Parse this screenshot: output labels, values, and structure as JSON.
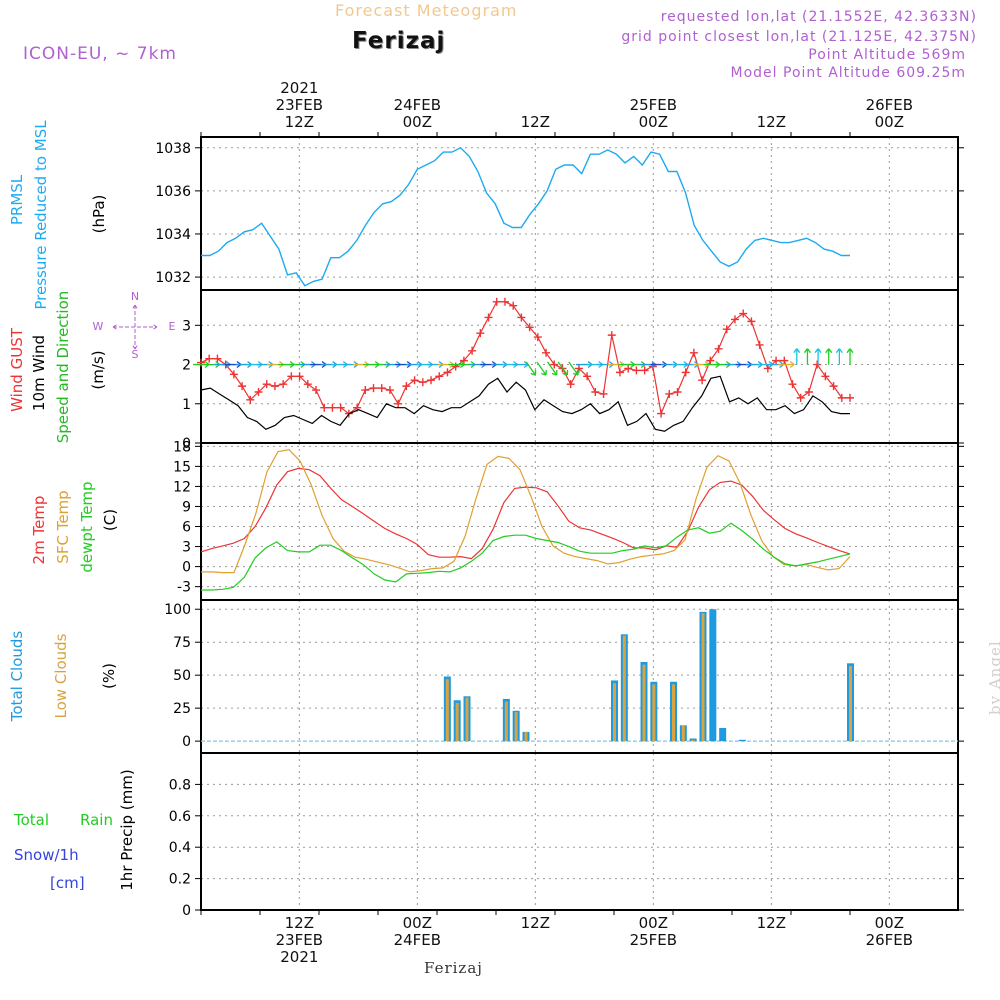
{
  "header": {
    "model": "ICON-EU, ~ 7km",
    "title": "Forecast Meteogram",
    "station": "Ferizaj",
    "requested": "requested lon,lat (21.1552E, 42.3633N)",
    "grid_point": "grid point closest lon,lat (21.125E, 42.375N)",
    "point_altitude": "Point Altitude 569m",
    "model_altitude": "Model Point Altitude 609.25m",
    "footer_station": "Ferizaj",
    "watermark": "by Angel"
  },
  "colors": {
    "pressure": "#1eaaf0",
    "gust": "#ee3333",
    "wind": "#000000",
    "direction": "#22bb22",
    "temp2m": "#ee3333",
    "sfc": "#e0a030",
    "dewpt": "#22cc22",
    "total_clouds": "#1e9be0",
    "low_clouds": "#d9a440",
    "rain": "#22cc22",
    "snow": "#3344dd",
    "header_purple": "#b060d0",
    "title_orange": "#f0c890"
  },
  "time_axis": {
    "start_hour": 0,
    "end_hour": 66,
    "top_labels": [
      {
        "hour": 10,
        "lines": [
          "2021",
          "23FEB",
          "12Z"
        ]
      },
      {
        "hour": 22,
        "lines": [
          "24FEB",
          "00Z"
        ]
      },
      {
        "hour": 34,
        "lines": [
          "12Z"
        ]
      },
      {
        "hour": 46,
        "lines": [
          "25FEB",
          "00Z"
        ]
      },
      {
        "hour": 58,
        "lines": [
          "12Z"
        ]
      },
      {
        "hour": 70,
        "lines": [
          "26FEB",
          "00Z"
        ]
      }
    ],
    "bottom_labels": [
      {
        "hour": 10,
        "lines": [
          "12Z",
          "23FEB",
          "2021"
        ]
      },
      {
        "hour": 22,
        "lines": [
          "00Z",
          "24FEB"
        ]
      },
      {
        "hour": 34,
        "lines": [
          "12Z"
        ]
      },
      {
        "hour": 46,
        "lines": [
          "00Z",
          "25FEB"
        ]
      },
      {
        "hour": 58,
        "lines": [
          "12Z"
        ]
      },
      {
        "hour": 70,
        "lines": [
          "00Z",
          "26FEB"
        ]
      }
    ]
  },
  "chart_data": [
    {
      "type": "line",
      "panel": "pressure",
      "ylabels": [
        "PRMSL",
        "Pressure Reduced to MSL",
        "(hPa)"
      ],
      "ylim": [
        1031.4,
        1038.5
      ],
      "yticks": [
        1032,
        1034,
        1036,
        1038
      ],
      "grid": true,
      "series": [
        {
          "name": "PRMSL",
          "values": [
            1033.0,
            1033.0,
            1033.2,
            1033.6,
            1033.8,
            1034.1,
            1034.2,
            1034.5,
            1033.9,
            1033.3,
            1032.1,
            1032.2,
            1031.6,
            1031.8,
            1031.9,
            1032.9,
            1032.9,
            1033.2,
            1033.7,
            1034.4,
            1035.0,
            1035.4,
            1035.5,
            1035.8,
            1036.3,
            1037.0,
            1037.2,
            1037.4,
            1037.8,
            1037.8,
            1038.0,
            1037.6,
            1036.9,
            1035.9,
            1035.4,
            1034.5,
            1034.3,
            1034.3,
            1034.9,
            1035.4,
            1036.0,
            1037.0,
            1037.2,
            1037.2,
            1036.8,
            1037.7,
            1037.7,
            1037.9,
            1037.7,
            1037.3,
            1037.6,
            1037.2,
            1037.8,
            1037.7,
            1036.9,
            1036.9,
            1035.9,
            1034.4,
            1033.7,
            1033.2,
            1032.7,
            1032.5,
            1032.7,
            1033.3,
            1033.7,
            1033.8,
            1033.7,
            1033.6,
            1033.6,
            1033.7,
            1033.8,
            1033.6,
            1033.3,
            1033.2,
            1033.0,
            1033.0
          ]
        }
      ]
    },
    {
      "type": "line",
      "panel": "wind",
      "ylabels": [
        "Wind GUST",
        "10m Wind",
        "Speed and Direction",
        "(m/s)"
      ],
      "compass": {
        "n": "N",
        "s": "S",
        "w": "W",
        "e": "E"
      },
      "ylim": [
        0,
        3.9
      ],
      "yticks": [
        0,
        1,
        2,
        3
      ],
      "grid": true,
      "series": [
        {
          "name": "Wind GUST",
          "values": [
            2.05,
            2.15,
            2.15,
            2.0,
            1.75,
            1.45,
            1.1,
            1.3,
            1.5,
            1.45,
            1.5,
            1.7,
            1.7,
            1.5,
            1.35,
            0.9,
            0.9,
            0.9,
            0.75,
            0.9,
            1.35,
            1.4,
            1.4,
            1.35,
            1.0,
            1.45,
            1.6,
            1.55,
            1.6,
            1.7,
            1.8,
            1.95,
            2.1,
            2.35,
            2.8,
            3.2,
            3.6,
            3.6,
            3.5,
            3.2,
            2.95,
            2.7,
            2.3,
            2.0,
            1.9,
            1.5,
            1.9,
            1.7,
            1.3,
            1.25,
            2.75,
            1.8,
            1.9,
            1.85,
            1.85,
            1.95,
            0.75,
            1.25,
            1.3,
            1.8,
            2.3,
            1.6,
            2.1,
            2.4,
            2.9,
            3.15,
            3.3,
            3.1,
            2.5,
            1.9,
            2.1,
            2.1,
            1.5,
            1.15,
            1.3,
            2.0,
            1.7,
            1.45,
            1.15,
            1.15
          ]
        },
        {
          "name": "10m Wind",
          "values": [
            1.35,
            1.4,
            1.25,
            1.1,
            0.95,
            0.65,
            0.55,
            0.35,
            0.45,
            0.65,
            0.7,
            0.6,
            0.5,
            0.7,
            0.55,
            0.45,
            0.75,
            0.85,
            0.75,
            0.65,
            1.0,
            0.9,
            0.9,
            0.75,
            0.95,
            0.85,
            0.8,
            0.9,
            0.9,
            1.05,
            1.2,
            1.5,
            1.65,
            1.3,
            1.55,
            1.35,
            0.85,
            1.1,
            0.95,
            0.8,
            0.75,
            0.85,
            1.0,
            0.75,
            0.85,
            1.05,
            0.45,
            0.55,
            0.75,
            0.35,
            0.3,
            0.45,
            0.55,
            0.9,
            1.2,
            1.65,
            1.7,
            1.05,
            1.15,
            1.0,
            1.15,
            0.85,
            0.85,
            0.95,
            0.75,
            0.85,
            1.2,
            1.05,
            0.8,
            0.75,
            0.75
          ]
        }
      ]
    },
    {
      "type": "line",
      "panel": "temperature",
      "ylabels": [
        "2m Temp",
        "SFC Temp",
        "dewpt Temp",
        "(C)"
      ],
      "ylim": [
        -5,
        18.5
      ],
      "yticks": [
        -3,
        0,
        3,
        6,
        9,
        12,
        15,
        18
      ],
      "grid": true,
      "series": [
        {
          "name": "2m Temp",
          "values": [
            2.2,
            2.7,
            3.1,
            3.5,
            4.2,
            6.0,
            8.8,
            12.2,
            14.2,
            14.7,
            14.5,
            13.6,
            11.7,
            10.0,
            9.0,
            7.9,
            6.8,
            5.7,
            4.9,
            4.2,
            3.3,
            1.8,
            1.4,
            1.4,
            1.5,
            1.2,
            2.7,
            5.6,
            9.6,
            11.7,
            11.9,
            11.8,
            11.2,
            9.1,
            6.8,
            5.8,
            5.5,
            4.9,
            4.3,
            3.6,
            2.8,
            2.8,
            2.5,
            3.1,
            2.9,
            5.3,
            8.9,
            11.5,
            12.6,
            12.8,
            12.2,
            10.5,
            8.4,
            7.0,
            5.7,
            4.9,
            4.3,
            3.6,
            3.0,
            2.4,
            1.9
          ]
        },
        {
          "name": "SFC Temp",
          "values": [
            -0.8,
            -0.8,
            -0.9,
            -0.9,
            3.3,
            8.0,
            14.2,
            17.2,
            17.5,
            15.8,
            12.3,
            7.7,
            4.2,
            2.3,
            1.4,
            1.1,
            0.7,
            0.3,
            -0.2,
            -0.8,
            -0.6,
            -0.3,
            -0.2,
            0.8,
            4.5,
            10.2,
            15.3,
            16.5,
            16.2,
            14.5,
            10.5,
            6.0,
            3.1,
            2.0,
            1.5,
            1.2,
            0.9,
            0.4,
            0.6,
            1.1,
            1.5,
            1.7,
            1.9,
            2.4,
            4.0,
            10.1,
            14.9,
            16.6,
            15.8,
            12.5,
            7.7,
            3.8,
            1.5,
            0.3,
            0.1,
            0.3,
            -0.1,
            -0.5,
            -0.3,
            1.5
          ]
        },
        {
          "name": "dewpt Temp",
          "values": [
            -3.5,
            -3.5,
            -3.4,
            -3.1,
            -1.6,
            1.3,
            2.8,
            3.7,
            2.4,
            2.2,
            2.2,
            3.2,
            3.2,
            2.4,
            1.3,
            0.3,
            -1.1,
            -2.0,
            -2.3,
            -1.1,
            -1.0,
            -0.9,
            -0.7,
            -0.8,
            -0.2,
            0.8,
            2.0,
            3.9,
            4.5,
            4.7,
            4.7,
            4.2,
            3.9,
            3.6,
            3.0,
            2.3,
            2.0,
            2.0,
            2.0,
            2.4,
            2.6,
            3.1,
            2.8,
            3.1,
            4.4,
            5.5,
            5.8,
            5.0,
            5.3,
            6.5,
            5.4,
            4.1,
            2.6,
            1.4,
            0.4,
            0.1,
            0.4,
            0.7,
            1.1,
            1.5,
            1.9
          ]
        }
      ]
    },
    {
      "type": "bar",
      "panel": "clouds",
      "ylabels": [
        "Total Clouds",
        "Low Clouds",
        "(%)"
      ],
      "ylim": [
        -9,
        107
      ],
      "yticks": [
        0,
        25,
        50,
        75,
        100
      ],
      "grid": true,
      "series": [
        {
          "name": "Total Clouds",
          "hours": [
            25,
            26,
            27,
            31,
            32,
            33,
            42,
            43,
            45,
            46,
            48,
            49,
            50,
            51,
            52,
            53,
            55,
            66
          ],
          "values": [
            49,
            31,
            34,
            32,
            23,
            7,
            46,
            81,
            60,
            45,
            45,
            12,
            2,
            98,
            100,
            10,
            1,
            59
          ]
        },
        {
          "name": "Low Clouds",
          "hours": [
            25,
            26,
            27,
            31,
            32,
            33,
            42,
            43,
            45,
            46,
            48,
            49,
            50,
            51,
            52,
            53,
            55,
            66
          ],
          "values": [
            47,
            29,
            33,
            30,
            22,
            7,
            44,
            80,
            58,
            43,
            43,
            12,
            1,
            97,
            0,
            0,
            0,
            57
          ]
        }
      ]
    },
    {
      "type": "line",
      "panel": "precip",
      "ylabels": [
        "Total Rain",
        "Snow/1h",
        "[cm]",
        "1hr Precip (mm)"
      ],
      "ylim": [
        0,
        1.0
      ],
      "yticks": [
        0,
        0.2,
        0.4,
        0.6,
        0.8
      ],
      "ytick_labels": [
        "0",
        "0.2",
        "0.4",
        "0.6",
        "0.8"
      ],
      "grid": true,
      "series": [
        {
          "name": "Total Rain",
          "values": [
            0,
            0
          ]
        }
      ]
    }
  ]
}
